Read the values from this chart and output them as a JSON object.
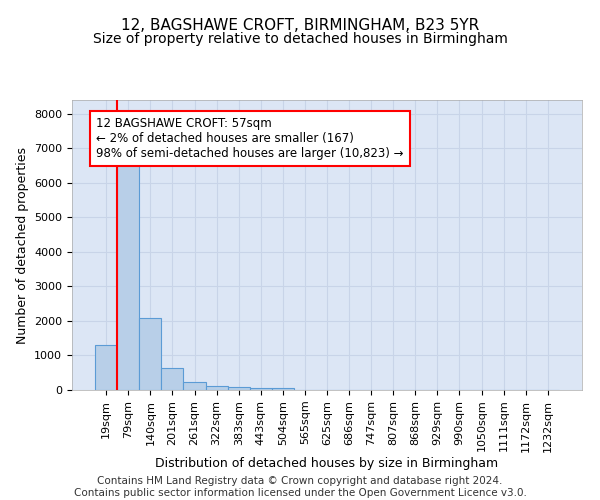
{
  "title1": "12, BAGSHAWE CROFT, BIRMINGHAM, B23 5YR",
  "title2": "Size of property relative to detached houses in Birmingham",
  "xlabel": "Distribution of detached houses by size in Birmingham",
  "ylabel": "Number of detached properties",
  "footer1": "Contains HM Land Registry data © Crown copyright and database right 2024.",
  "footer2": "Contains public sector information licensed under the Open Government Licence v3.0.",
  "annotation_line1": "12 BAGSHAWE CROFT: 57sqm",
  "annotation_line2": "← 2% of detached houses are smaller (167)",
  "annotation_line3": "98% of semi-detached houses are larger (10,823) →",
  "bar_labels": [
    "19sqm",
    "79sqm",
    "140sqm",
    "201sqm",
    "261sqm",
    "322sqm",
    "383sqm",
    "443sqm",
    "504sqm",
    "565sqm",
    "625sqm",
    "686sqm",
    "747sqm",
    "807sqm",
    "868sqm",
    "929sqm",
    "990sqm",
    "1050sqm",
    "1111sqm",
    "1172sqm",
    "1232sqm"
  ],
  "bar_values": [
    1300,
    6580,
    2080,
    640,
    240,
    130,
    100,
    65,
    55,
    0,
    0,
    0,
    0,
    0,
    0,
    0,
    0,
    0,
    0,
    0,
    0
  ],
  "bar_color": "#b8cfe8",
  "bar_edge_color": "#5b9bd5",
  "red_line_x": 0.5,
  "ylim": [
    0,
    8400
  ],
  "yticks": [
    0,
    1000,
    2000,
    3000,
    4000,
    5000,
    6000,
    7000,
    8000
  ],
  "grid_color": "#c8d4e8",
  "plot_bg_color": "#dce6f5",
  "title_fontsize": 11,
  "subtitle_fontsize": 10,
  "ylabel_fontsize": 9,
  "xlabel_fontsize": 9,
  "tick_fontsize": 8,
  "annotation_fontsize": 8.5,
  "footer_fontsize": 7.5
}
